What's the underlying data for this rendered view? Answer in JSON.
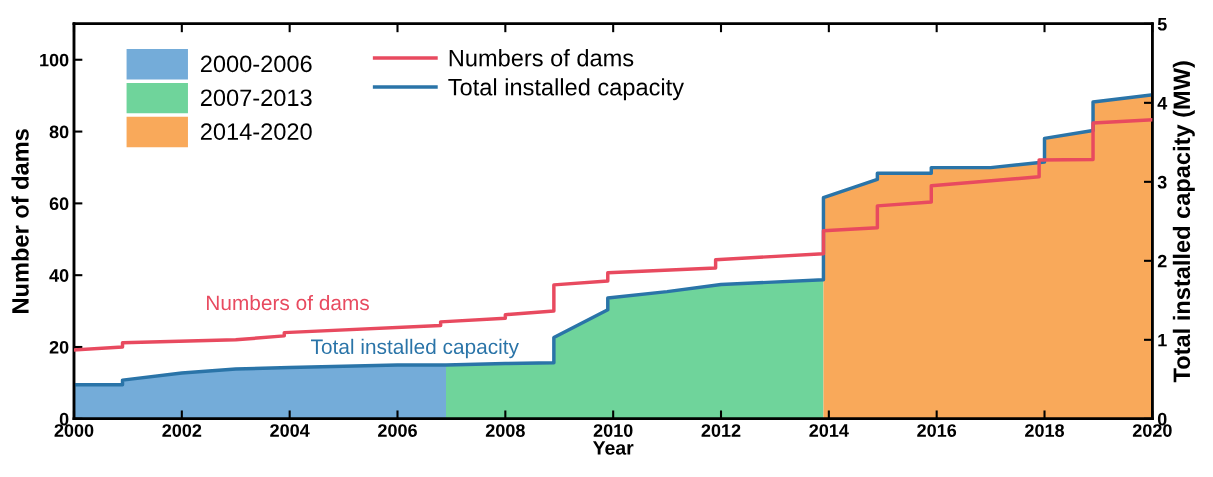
{
  "chart_data": {
    "type": "line",
    "xlabel": "Year",
    "ylabel": "Number of dams",
    "y2label": "Total installed capacity (MW)",
    "xlim": [
      2000,
      2020
    ],
    "xticks": [
      2000,
      2002,
      2004,
      2006,
      2008,
      2010,
      2012,
      2014,
      2016,
      2018,
      2020
    ],
    "ylim": [
      0,
      110
    ],
    "yticks": [
      0,
      20,
      40,
      60,
      80,
      100
    ],
    "y2lim": [
      0,
      5
    ],
    "y2ticks": [
      0,
      1,
      2,
      3,
      4,
      5
    ],
    "grid": false,
    "legend": "top left",
    "series": [
      {
        "name": "2000-2006",
        "type": "area",
        "axis": "y2",
        "color": "#74acd9",
        "x": [
          2000,
          2000.9,
          2000.9,
          2002,
          2003,
          2004,
          2006,
          2006.9
        ],
        "values": [
          0.43,
          0.43,
          0.49,
          0.58,
          0.63,
          0.65,
          0.68,
          0.68
        ]
      },
      {
        "name": "2007-2013",
        "type": "area",
        "axis": "y2",
        "color": "#6fd49b",
        "x": [
          2006.9,
          2008,
          2008.9,
          2008.9,
          2009.9,
          2009.9,
          2011,
          2012,
          2013.9
        ],
        "values": [
          0.68,
          0.7,
          0.71,
          1.03,
          1.38,
          1.53,
          1.61,
          1.7,
          1.76
        ]
      },
      {
        "name": "2014-2020",
        "type": "area",
        "axis": "y2",
        "color": "#f9a95a",
        "x": [
          2013.9,
          2014.9,
          2014.9,
          2015.9,
          2015.9,
          2017,
          2018,
          2018,
          2018.9,
          2018.9,
          2020
        ],
        "values": [
          2.8,
          3.03,
          3.11,
          3.11,
          3.18,
          3.18,
          3.25,
          3.55,
          3.65,
          4.01,
          4.1
        ]
      },
      {
        "name": "Numbers of dams",
        "axis": "y",
        "color": "#e84a5f",
        "x": [
          2000,
          2000.9,
          2000.9,
          2003,
          2003.9,
          2003.9,
          2006.8,
          2006.8,
          2008,
          2008,
          2008.9,
          2008.9,
          2009.9,
          2009.9,
          2011.9,
          2011.9,
          2013.9,
          2013.9,
          2014.9,
          2014.9,
          2015.9,
          2015.9,
          2017.9,
          2017.9,
          2018.9,
          2018.9,
          2020
        ],
        "values": [
          19.2,
          20,
          21.2,
          22,
          23.1,
          24,
          26,
          27,
          28,
          29,
          30,
          37.3,
          38.4,
          40.7,
          42,
          44.3,
          46,
          52.4,
          53.2,
          59.3,
          60.4,
          64.9,
          67.4,
          72.1,
          72.2,
          82.4,
          83.3
        ]
      },
      {
        "name": "Total installed capacity",
        "axis": "y2",
        "color": "#2a74a8",
        "x": [
          2000,
          2000.9,
          2000.9,
          2002,
          2003,
          2004,
          2006,
          2006.9,
          2008,
          2008.9,
          2008.9,
          2009.9,
          2009.9,
          2011,
          2012,
          2013.9,
          2013.9,
          2014.9,
          2014.9,
          2015.9,
          2015.9,
          2017,
          2018,
          2018,
          2018.9,
          2018.9,
          2020
        ],
        "values": [
          0.43,
          0.43,
          0.49,
          0.58,
          0.63,
          0.65,
          0.68,
          0.68,
          0.7,
          0.71,
          1.03,
          1.38,
          1.53,
          1.61,
          1.7,
          1.76,
          2.8,
          3.03,
          3.11,
          3.11,
          3.18,
          3.18,
          3.25,
          3.55,
          3.65,
          4.01,
          4.1
        ]
      }
    ],
    "annotations": [
      "Numbers of dams",
      "Total installed capacity"
    ]
  }
}
